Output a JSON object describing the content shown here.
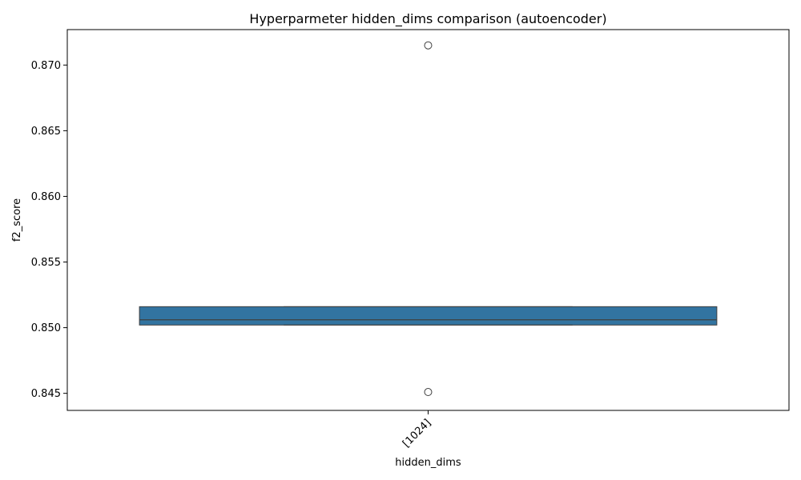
{
  "chart_data": {
    "type": "box",
    "title": "Hyperparmeter hidden_dims comparison (autoencoder)",
    "xlabel": "hidden_dims",
    "ylabel": "f2_score",
    "categories": [
      "[1024]"
    ],
    "ylim": [
      0.8437,
      0.8727
    ],
    "yticks": [
      0.845,
      0.85,
      0.855,
      0.86,
      0.865,
      0.87
    ],
    "ytick_labels": [
      "0.845",
      "0.850",
      "0.855",
      "0.860",
      "0.865",
      "0.870"
    ],
    "boxes": [
      {
        "category": "[1024]",
        "q1": 0.8502,
        "median": 0.8506,
        "q3": 0.8516,
        "whisker_low": 0.8502,
        "whisker_high": 0.8516,
        "outliers": [
          0.8715,
          0.8451
        ]
      }
    ],
    "box_color": "#3274a1",
    "grid": false,
    "legend": "none"
  }
}
